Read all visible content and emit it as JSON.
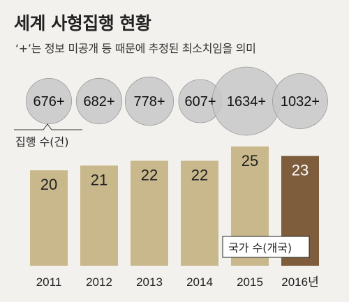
{
  "title": "세계 사형집행 현황",
  "subtitle": "‘+’는 정보 미공개 등 때문에 추정된 최소치임을 의미",
  "colors": {
    "bar": "#c9b88c",
    "bar_highlight": "#7e5d3c",
    "bubble": "#c8c8c8",
    "bubble_border": "#9a9a9a",
    "background": "#f3f1ee"
  },
  "chart_data": {
    "type": "bar",
    "categories": [
      "2011",
      "2012",
      "2013",
      "2014",
      "2015",
      "2016년"
    ],
    "series": [
      {
        "name": "국가 수(개국)",
        "values": [
          20,
          21,
          22,
          22,
          25,
          23
        ]
      }
    ],
    "bubbles": {
      "name": "집행 수(건)",
      "labels": [
        "676+",
        "682+",
        "778+",
        "607+",
        "1634+",
        "1032+"
      ],
      "values": [
        676,
        682,
        778,
        607,
        1634,
        1032
      ]
    },
    "highlight_index": 5,
    "ylim": [
      0,
      25
    ]
  }
}
